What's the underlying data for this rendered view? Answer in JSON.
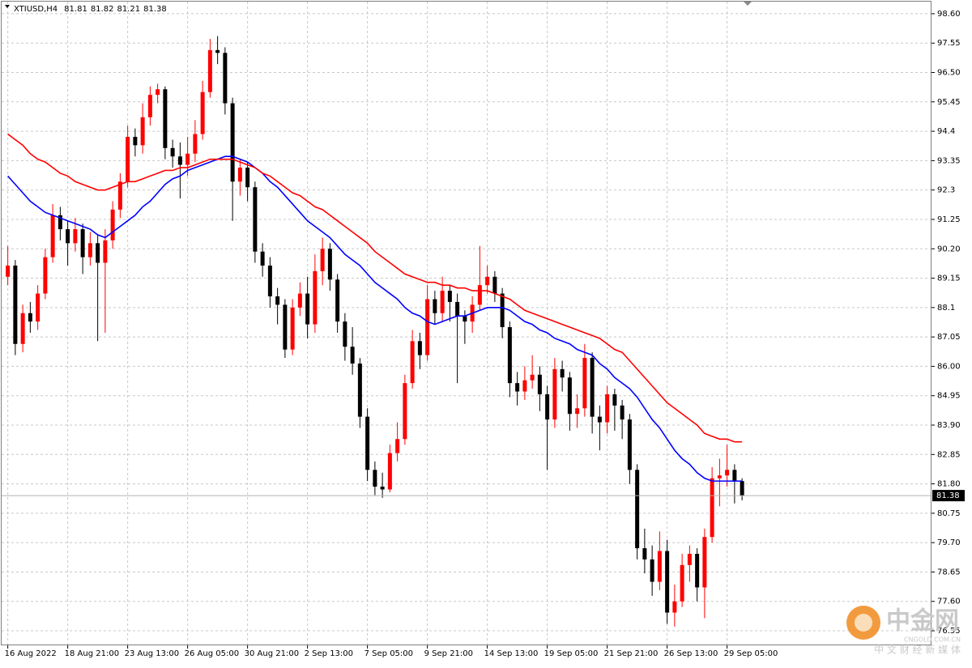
{
  "chart_data": {
    "type": "candlestick",
    "symbol": "XTIUSD,H4",
    "header_values": [
      81.81,
      81.82,
      81.21,
      81.38
    ],
    "up_color": "#ff0000",
    "down_color": "#000000",
    "grid": true,
    "ylim": [
      76.03,
      99.09
    ],
    "yticks": [
      {
        "value": 98.6,
        "label": "98.60"
      },
      97.55,
      {
        "value": 96.5,
        "label": "96.50"
      },
      95.45,
      94.4,
      93.35,
      92.3,
      91.25,
      {
        "value": 90.2,
        "label": "90.20"
      },
      89.15,
      88.1,
      87.05,
      {
        "value": 86,
        "label": "86.00"
      },
      84.95,
      {
        "value": 83.9,
        "label": "83.90"
      },
      82.85,
      {
        "value": 81.8,
        "label": "81.80"
      },
      80.75,
      {
        "value": 79.7,
        "label": "79.70"
      },
      78.65,
      {
        "value": 77.6,
        "label": "77.60"
      },
      76.55
    ],
    "xticks": [
      {
        "value": 0,
        "label": "16 Aug 2022"
      },
      {
        "value": 8,
        "label": "18 Aug 21:00"
      },
      {
        "value": 16,
        "label": "23 Aug 13:00"
      },
      {
        "value": 24,
        "label": "26 Aug 05:00"
      },
      {
        "value": 32,
        "label": "30 Aug 21:00"
      },
      {
        "value": 40,
        "label": "2 Sep 13:00"
      },
      {
        "value": 48,
        "label": "7 Sep 05:00"
      },
      {
        "value": 56,
        "label": "9 Sep 21:00"
      },
      {
        "value": 64,
        "label": "14 Sep 13:00"
      },
      {
        "value": 72,
        "label": "19 Sep 05:00"
      },
      {
        "value": 80,
        "label": "21 Sep 21:00"
      },
      {
        "value": 88,
        "label": "26 Sep 13:00"
      },
      {
        "value": 96,
        "label": "29 Sep 05:00"
      }
    ],
    "ohlc": {
      "open": [
        89.2,
        89.6,
        86.8,
        87.9,
        87.6,
        88.6,
        89.9,
        91.4,
        90.9,
        90.4,
        90.9,
        89.9,
        90.4,
        89.7,
        90.5,
        91.6,
        92.6,
        94.2,
        93.9,
        94.9,
        95.7,
        95.9,
        93.8,
        93.5,
        93.2,
        93.6,
        94.3,
        95.8,
        97.3,
        97.2,
        95.4,
        92.6,
        93.1,
        92.4,
        90.1,
        89.6,
        88.5,
        88.2,
        86.6,
        88.1,
        88.6,
        87.5,
        89.4,
        90.2,
        89.1,
        87.6,
        86.7,
        86.1,
        84.2,
        82.3,
        81.7,
        81.6,
        82.9,
        83.4,
        85.4,
        86.9,
        86.4,
        88.4,
        87.9,
        88.7,
        88.3,
        87.8,
        87.6,
        88.2,
        88.9,
        89.2,
        88.6,
        87.4,
        85.4,
        85.1,
        85.5,
        85.7,
        85.0,
        84.1,
        85.9,
        85.6,
        84.3,
        84.5,
        86.3,
        84.2,
        84.0,
        85.0,
        84.6,
        84.1,
        82.3,
        79.5,
        79.1,
        78.3,
        79.4,
        77.2,
        77.6,
        78.9,
        79.3,
        78.1,
        79.9,
        82.0,
        82.1,
        82.3,
        81.9
      ],
      "high": [
        90.3,
        89.8,
        88.2,
        88.3,
        88.9,
        90.2,
        91.8,
        91.7,
        91.2,
        91.3,
        91.1,
        90.8,
        90.7,
        90.9,
        91.9,
        92.9,
        94.6,
        94.5,
        95.4,
        96.0,
        96.1,
        96.0,
        94.1,
        94.0,
        94.2,
        94.8,
        96.2,
        97.7,
        97.8,
        97.4,
        95.6,
        93.4,
        93.3,
        92.6,
        90.4,
        89.9,
        88.8,
        88.4,
        88.4,
        89.0,
        89.2,
        90.0,
        90.6,
        90.4,
        89.3,
        87.9,
        87.4,
        86.3,
        84.5,
        82.6,
        82.2,
        83.2,
        84.0,
        85.7,
        87.3,
        87.2,
        88.9,
        88.7,
        89.2,
        88.9,
        88.6,
        88.0,
        88.5,
        90.3,
        89.6,
        89.4,
        88.8,
        87.6,
        85.8,
        86.0,
        86.4,
        86.0,
        85.3,
        86.3,
        86.2,
        85.8,
        85.0,
        86.8,
        86.5,
        84.6,
        85.3,
        85.2,
        84.8,
        84.3,
        82.5,
        80.2,
        79.6,
        80.1,
        79.8,
        78.2,
        79.3,
        79.6,
        79.5,
        80.2,
        82.4,
        82.7,
        83.2,
        82.5,
        82.0
      ],
      "low": [
        88.9,
        86.4,
        86.5,
        87.2,
        87.3,
        88.4,
        89.7,
        90.5,
        89.6,
        90.1,
        89.3,
        89.6,
        86.9,
        87.2,
        90.2,
        91.3,
        92.4,
        93.5,
        93.6,
        94.6,
        95.4,
        93.4,
        93.1,
        92.0,
        92.8,
        93.3,
        94.1,
        95.6,
        96.8,
        95.0,
        91.2,
        92.1,
        91.9,
        89.7,
        89.2,
        88.1,
        87.5,
        86.3,
        86.4,
        87.8,
        87.0,
        87.2,
        88.9,
        88.7,
        87.2,
        86.2,
        85.7,
        83.8,
        81.9,
        81.4,
        81.3,
        81.5,
        82.6,
        83.2,
        85.2,
        85.9,
        86.2,
        87.5,
        87.6,
        87.6,
        85.4,
        86.8,
        87.2,
        88.0,
        88.6,
        88.3,
        87.0,
        84.9,
        84.6,
        84.8,
        85.2,
        84.4,
        82.3,
        83.8,
        85.1,
        83.7,
        83.8,
        84.2,
        83.6,
        83.0,
        83.6,
        83.7,
        83.4,
        81.8,
        79.1,
        78.6,
        77.8,
        78.0,
        76.8,
        76.7,
        77.4,
        78.3,
        77.6,
        77.0,
        79.7,
        81.0,
        81.7,
        81.1,
        81.21
      ],
      "close": [
        89.6,
        86.8,
        87.9,
        87.6,
        88.6,
        89.9,
        91.4,
        90.9,
        90.4,
        90.9,
        89.9,
        90.4,
        89.7,
        90.5,
        91.6,
        92.6,
        94.2,
        93.9,
        94.9,
        95.7,
        95.9,
        93.8,
        93.5,
        93.2,
        93.6,
        94.3,
        95.8,
        97.3,
        97.2,
        95.4,
        92.6,
        93.1,
        92.4,
        90.1,
        89.6,
        88.5,
        88.2,
        86.6,
        88.1,
        88.6,
        87.5,
        89.4,
        90.2,
        89.1,
        87.6,
        86.7,
        86.1,
        84.2,
        82.3,
        81.7,
        81.6,
        82.9,
        83.4,
        85.4,
        86.9,
        86.4,
        88.4,
        87.9,
        88.7,
        88.3,
        87.8,
        87.6,
        88.2,
        88.9,
        89.2,
        88.6,
        87.4,
        85.4,
        85.1,
        85.5,
        85.7,
        85.0,
        84.1,
        85.9,
        85.6,
        84.3,
        84.5,
        86.3,
        84.2,
        84.0,
        85.0,
        84.6,
        84.1,
        82.3,
        79.5,
        79.1,
        78.3,
        79.4,
        77.2,
        77.6,
        78.9,
        79.3,
        78.1,
        79.9,
        82.0,
        82.1,
        82.3,
        81.9,
        81.38
      ]
    },
    "moving_averages": [
      {
        "color": "#0000ff",
        "values": [
          92.8,
          92.5,
          92.2,
          91.9,
          91.7,
          91.5,
          91.4,
          91.3,
          91.2,
          91.1,
          91.0,
          90.9,
          90.7,
          90.6,
          90.8,
          91.0,
          91.2,
          91.4,
          91.7,
          91.9,
          92.2,
          92.5,
          92.7,
          92.8,
          93.0,
          93.1,
          93.2,
          93.3,
          93.4,
          93.5,
          93.5,
          93.4,
          93.3,
          93.1,
          92.9,
          92.6,
          92.4,
          92.1,
          91.8,
          91.5,
          91.2,
          91.0,
          90.8,
          90.6,
          90.3,
          90.0,
          89.8,
          89.6,
          89.3,
          89.0,
          88.8,
          88.6,
          88.4,
          88.1,
          87.9,
          87.8,
          87.6,
          87.5,
          87.6,
          87.7,
          87.8,
          87.8,
          87.9,
          88.0,
          88.1,
          88.1,
          88.1,
          88.0,
          87.8,
          87.6,
          87.5,
          87.3,
          87.2,
          87.0,
          86.9,
          86.8,
          86.6,
          86.5,
          86.4,
          86.1,
          85.9,
          85.6,
          85.4,
          85.2,
          84.9,
          84.5,
          84.1,
          83.8,
          83.4,
          83.0,
          82.7,
          82.5,
          82.2,
          82.0,
          81.9,
          81.9,
          81.9,
          81.9,
          81.9
        ]
      },
      {
        "color": "#ff0000",
        "values": [
          94.3,
          94.1,
          93.9,
          93.6,
          93.4,
          93.3,
          93.1,
          92.9,
          92.8,
          92.6,
          92.5,
          92.4,
          92.3,
          92.3,
          92.4,
          92.5,
          92.6,
          92.6,
          92.7,
          92.8,
          92.9,
          93.0,
          93.0,
          93.1,
          93.1,
          93.2,
          93.3,
          93.4,
          93.4,
          93.4,
          93.4,
          93.3,
          93.2,
          93.1,
          92.9,
          92.8,
          92.6,
          92.4,
          92.2,
          92.1,
          91.9,
          91.7,
          91.6,
          91.4,
          91.2,
          91.0,
          90.8,
          90.6,
          90.4,
          90.1,
          89.9,
          89.7,
          89.5,
          89.3,
          89.2,
          89.1,
          89.0,
          89.0,
          88.9,
          88.9,
          88.8,
          88.8,
          88.7,
          88.7,
          88.7,
          88.6,
          88.5,
          88.4,
          88.2,
          88.0,
          87.9,
          87.8,
          87.7,
          87.6,
          87.5,
          87.4,
          87.3,
          87.2,
          87.1,
          87.0,
          86.8,
          86.6,
          86.5,
          86.2,
          85.9,
          85.6,
          85.3,
          85.0,
          84.7,
          84.5,
          84.3,
          84.1,
          83.9,
          83.6,
          83.5,
          83.4,
          83.4,
          83.3,
          83.3
        ]
      }
    ],
    "watermark": {
      "brand": "中金网",
      "site": "CNGOLD.COM.CN",
      "slogan": "中 文 财 经 新 媒 体"
    }
  }
}
